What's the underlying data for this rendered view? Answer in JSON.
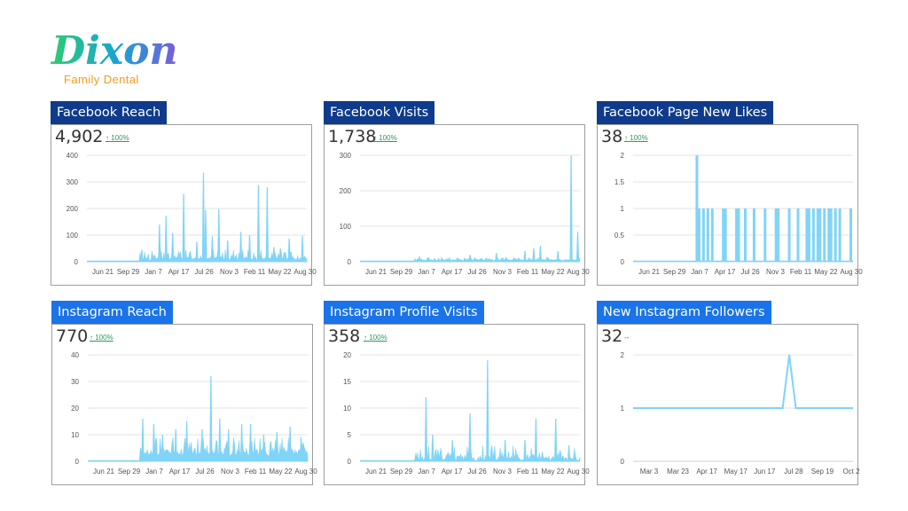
{
  "brand": {
    "logo_text": "Dixon",
    "subtitle": "Family Dental",
    "logo_colors": [
      "#2ecc71",
      "#17a2d8",
      "#7b5cd6"
    ],
    "subtitle_color": "#f39c1f"
  },
  "colors": {
    "dark_title_bg": "#0f3b8c",
    "light_title_bg": "#1a73e8",
    "series": "#80d4f7",
    "grid": "#e3e3e3",
    "positive_change": "#2e9b5e"
  },
  "panels": [
    {
      "title": "Facebook Reach",
      "metric": "4,902",
      "change": "↑ 100%",
      "title_style": "dark",
      "chart_data": {
        "type": "area",
        "title": "Facebook Reach",
        "yticks": [
          0,
          100,
          200,
          300,
          400
        ],
        "ylim": [
          0,
          400
        ],
        "x_tick_labels": [
          "Jun 21",
          "Sep 29",
          "Jan 7",
          "Apr 17",
          "Jul 26",
          "Nov 3",
          "Feb 11",
          "May 22",
          "Aug 30"
        ],
        "grid": true,
        "peaks": [
          {
            "x": 0.25,
            "y": 45
          },
          {
            "x": 0.33,
            "y": 140
          },
          {
            "x": 0.36,
            "y": 172
          },
          {
            "x": 0.39,
            "y": 108
          },
          {
            "x": 0.44,
            "y": 255
          },
          {
            "x": 0.5,
            "y": 75
          },
          {
            "x": 0.53,
            "y": 335
          },
          {
            "x": 0.54,
            "y": 195
          },
          {
            "x": 0.57,
            "y": 95
          },
          {
            "x": 0.6,
            "y": 198
          },
          {
            "x": 0.64,
            "y": 80
          },
          {
            "x": 0.7,
            "y": 112
          },
          {
            "x": 0.74,
            "y": 100
          },
          {
            "x": 0.78,
            "y": 288
          },
          {
            "x": 0.82,
            "y": 280
          },
          {
            "x": 0.85,
            "y": 55
          },
          {
            "x": 0.88,
            "y": 50
          },
          {
            "x": 0.92,
            "y": 88
          },
          {
            "x": 0.98,
            "y": 98
          }
        ],
        "noise": {
          "start": 0.24,
          "end": 1.0,
          "base": 5,
          "amplitude": 40
        }
      }
    },
    {
      "title": "Facebook Visits",
      "metric": "1,738",
      "change": "↑ 100%",
      "title_style": "dark",
      "chart_data": {
        "type": "area",
        "title": "Facebook Visits",
        "yticks": [
          0,
          100,
          200,
          300
        ],
        "ylim": [
          0,
          300
        ],
        "x_tick_labels": [
          "Jun 21",
          "Sep 29",
          "Jan 7",
          "Apr 17",
          "Jul 26",
          "Nov 3",
          "Feb 11",
          "May 22",
          "Aug 30"
        ],
        "grid": true,
        "peaks": [
          {
            "x": 0.27,
            "y": 15
          },
          {
            "x": 0.5,
            "y": 20
          },
          {
            "x": 0.62,
            "y": 25
          },
          {
            "x": 0.75,
            "y": 30
          },
          {
            "x": 0.79,
            "y": 38
          },
          {
            "x": 0.82,
            "y": 45
          },
          {
            "x": 0.9,
            "y": 30
          },
          {
            "x": 0.96,
            "y": 300
          },
          {
            "x": 0.99,
            "y": 85
          }
        ],
        "noise": {
          "start": 0.25,
          "end": 1.0,
          "base": 3,
          "amplitude": 10
        }
      }
    },
    {
      "title": "Facebook Page New Likes",
      "metric": "38",
      "change": "↑ 100%",
      "title_style": "dark",
      "chart_data": {
        "type": "bar",
        "title": "Facebook Page New Likes",
        "yticks": [
          0,
          0.5,
          1,
          1.5,
          2
        ],
        "ylim": [
          0,
          2
        ],
        "x_tick_labels": [
          "Jun 21",
          "Sep 29",
          "Jan 7",
          "Apr 17",
          "Jul 26",
          "Nov 3",
          "Feb 11",
          "May 22",
          "Aug 30"
        ],
        "grid": true,
        "peaks": [
          {
            "x": 0.29,
            "y": 2
          },
          {
            "x": 0.3,
            "y": 1
          },
          {
            "x": 0.32,
            "y": 1
          },
          {
            "x": 0.34,
            "y": 1
          },
          {
            "x": 0.36,
            "y": 1
          },
          {
            "x": 0.41,
            "y": 1
          },
          {
            "x": 0.42,
            "y": 1
          },
          {
            "x": 0.47,
            "y": 1
          },
          {
            "x": 0.48,
            "y": 1
          },
          {
            "x": 0.51,
            "y": 1
          },
          {
            "x": 0.55,
            "y": 1
          },
          {
            "x": 0.6,
            "y": 1
          },
          {
            "x": 0.65,
            "y": 1
          },
          {
            "x": 0.66,
            "y": 1
          },
          {
            "x": 0.71,
            "y": 1
          },
          {
            "x": 0.75,
            "y": 1
          },
          {
            "x": 0.79,
            "y": 1
          },
          {
            "x": 0.8,
            "y": 1
          },
          {
            "x": 0.82,
            "y": 1
          },
          {
            "x": 0.84,
            "y": 1
          },
          {
            "x": 0.85,
            "y": 1
          },
          {
            "x": 0.87,
            "y": 1
          },
          {
            "x": 0.89,
            "y": 1
          },
          {
            "x": 0.9,
            "y": 1
          },
          {
            "x": 0.92,
            "y": 1
          },
          {
            "x": 0.94,
            "y": 1
          },
          {
            "x": 0.99,
            "y": 1
          }
        ],
        "noise": null
      }
    },
    {
      "title": "Instagram Reach",
      "metric": "770",
      "change": "↑ 100%",
      "title_style": "light",
      "chart_data": {
        "type": "area",
        "title": "Instagram Reach",
        "yticks": [
          0,
          10,
          20,
          30,
          40
        ],
        "ylim": [
          0,
          40
        ],
        "x_tick_labels": [
          "Jun 21",
          "Sep 29",
          "Jan 7",
          "Apr 17",
          "Jul 26",
          "Nov 3",
          "Feb 11",
          "May 22",
          "Aug 30"
        ],
        "grid": true,
        "peaks": [
          {
            "x": 0.24,
            "y": 5
          },
          {
            "x": 0.25,
            "y": 16
          },
          {
            "x": 0.3,
            "y": 14
          },
          {
            "x": 0.34,
            "y": 10
          },
          {
            "x": 0.4,
            "y": 12
          },
          {
            "x": 0.45,
            "y": 15
          },
          {
            "x": 0.52,
            "y": 12
          },
          {
            "x": 0.56,
            "y": 32
          },
          {
            "x": 0.6,
            "y": 16
          },
          {
            "x": 0.64,
            "y": 12
          },
          {
            "x": 0.7,
            "y": 14
          },
          {
            "x": 0.74,
            "y": 14
          },
          {
            "x": 0.8,
            "y": 10
          },
          {
            "x": 0.86,
            "y": 11
          },
          {
            "x": 0.92,
            "y": 13
          },
          {
            "x": 0.97,
            "y": 9
          }
        ],
        "noise": {
          "start": 0.24,
          "end": 1.0,
          "base": 2,
          "amplitude": 7
        }
      }
    },
    {
      "title": "Instagram Profile Visits",
      "metric": "358",
      "change": "↑ 100%",
      "title_style": "light",
      "chart_data": {
        "type": "area",
        "title": "Instagram Profile Visits",
        "yticks": [
          0,
          5,
          10,
          15,
          20
        ],
        "ylim": [
          0,
          20
        ],
        "x_tick_labels": [
          "Jun 21",
          "Sep 29",
          "Jan 7",
          "Apr 17",
          "Jul 26",
          "Nov 3",
          "Feb 11",
          "May 22",
          "Aug 30"
        ],
        "grid": true,
        "peaks": [
          {
            "x": 0.3,
            "y": 12
          },
          {
            "x": 0.33,
            "y": 5
          },
          {
            "x": 0.42,
            "y": 4
          },
          {
            "x": 0.5,
            "y": 9
          },
          {
            "x": 0.58,
            "y": 19
          },
          {
            "x": 0.66,
            "y": 4
          },
          {
            "x": 0.75,
            "y": 4
          },
          {
            "x": 0.8,
            "y": 8
          },
          {
            "x": 0.89,
            "y": 8
          },
          {
            "x": 0.95,
            "y": 3
          }
        ],
        "noise": {
          "start": 0.25,
          "end": 1.0,
          "base": 0,
          "amplitude": 3
        }
      }
    },
    {
      "title": "New Instagram Followers",
      "metric": "32",
      "change": "--",
      "title_style": "light",
      "chart_data": {
        "type": "line",
        "title": "New Instagram Followers",
        "yticks": [
          0,
          1,
          2
        ],
        "ylim": [
          0,
          2
        ],
        "x_tick_labels": [
          "Mar 3",
          "Mar 23",
          "Apr 17",
          "May 17",
          "Jun 17",
          "Jul 28",
          "Sep 19",
          "Oct 2"
        ],
        "grid": true,
        "points": [
          {
            "x": 0.0,
            "y": 1
          },
          {
            "x": 0.68,
            "y": 1
          },
          {
            "x": 0.71,
            "y": 2
          },
          {
            "x": 0.74,
            "y": 1
          },
          {
            "x": 1.0,
            "y": 1
          }
        ]
      }
    }
  ]
}
